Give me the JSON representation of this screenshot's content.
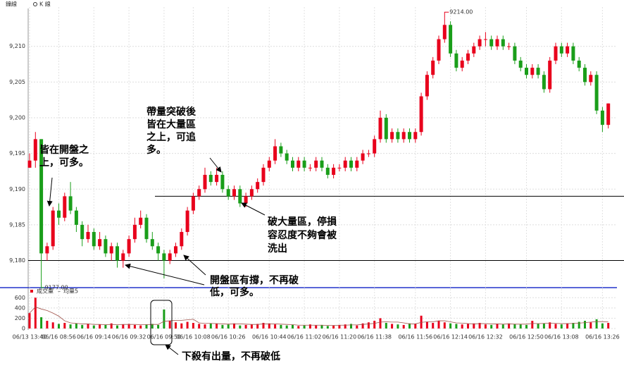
{
  "chart_data": {
    "type": "candlestick",
    "tabs": [
      "鐘線",
      "K 線"
    ],
    "ohlc": [
      [
        9193,
        9195,
        9193,
        9194
      ],
      [
        9194,
        9198,
        9193,
        9197
      ],
      [
        9197,
        9197,
        9177,
        9181
      ],
      [
        9181,
        9182.5,
        9180,
        9182
      ],
      [
        9182,
        9187.5,
        9181.5,
        9187
      ],
      [
        9187,
        9188,
        9185,
        9186
      ],
      [
        9186,
        9189.5,
        9185.5,
        9189
      ],
      [
        9189,
        9191,
        9186.5,
        9187
      ],
      [
        9187,
        9187.5,
        9184,
        9185
      ],
      [
        9185,
        9185.5,
        9182,
        9183
      ],
      [
        9183,
        9185,
        9182.5,
        9184
      ],
      [
        9184,
        9184.5,
        9181.5,
        9182
      ],
      [
        9182,
        9184,
        9181.5,
        9183
      ],
      [
        9183,
        9183.5,
        9180.5,
        9181
      ],
      [
        9181,
        9182.5,
        9180,
        9182
      ],
      [
        9182,
        9182.5,
        9179,
        9180
      ],
      [
        9180,
        9181.5,
        9179,
        9181
      ],
      [
        9181,
        9183.5,
        9180.5,
        9183
      ],
      [
        9183,
        9186,
        9182.5,
        9185
      ],
      [
        9185,
        9187,
        9184.5,
        9186
      ],
      [
        9186,
        9186.5,
        9182.5,
        9183
      ],
      [
        9183,
        9184,
        9181.5,
        9182
      ],
      [
        9182,
        9182.5,
        9180,
        9181
      ],
      [
        9181,
        9181.5,
        9177.5,
        9180
      ],
      [
        9180,
        9181.5,
        9179.5,
        9181
      ],
      [
        9181,
        9182.5,
        9180.5,
        9182
      ],
      [
        9182,
        9184.5,
        9181.5,
        9184
      ],
      [
        9184,
        9187.5,
        9183.5,
        9187
      ],
      [
        9187,
        9189.5,
        9186.5,
        9189
      ],
      [
        9189,
        9190.5,
        9188.5,
        9190
      ],
      [
        9190,
        9193,
        9189.5,
        9192
      ],
      [
        9192,
        9192.5,
        9190.5,
        9191
      ],
      [
        9191,
        9193,
        9190.5,
        9192
      ],
      [
        9192,
        9192.5,
        9189.5,
        9190
      ],
      [
        9190,
        9190.5,
        9188.5,
        9189
      ],
      [
        9189,
        9190.5,
        9188.5,
        9190
      ],
      [
        9190,
        9190.5,
        9187.5,
        9188
      ],
      [
        9188,
        9189.5,
        9187.5,
        9189
      ],
      [
        9189,
        9190.5,
        9188.5,
        9190
      ],
      [
        9190,
        9191.5,
        9189.5,
        9191
      ],
      [
        9191,
        9193.5,
        9190.5,
        9193
      ],
      [
        9193,
        9194.5,
        9192.5,
        9194
      ],
      [
        9194,
        9197,
        9193.5,
        9196
      ],
      [
        9196,
        9196.5,
        9194.5,
        9195
      ],
      [
        9195,
        9195.5,
        9193.5,
        9194
      ],
      [
        9194,
        9194.5,
        9192.5,
        9193
      ],
      [
        9193,
        9194.5,
        9192.5,
        9194
      ],
      [
        9194,
        9194.5,
        9192.5,
        9193
      ],
      [
        9193,
        9193.5,
        9192.5,
        9193
      ],
      [
        9193,
        9194.5,
        9192.5,
        9194
      ],
      [
        9194,
        9194.5,
        9192.5,
        9193
      ],
      [
        9193,
        9193.5,
        9191.5,
        9192
      ],
      [
        9192,
        9193.5,
        9191.5,
        9193
      ],
      [
        9193,
        9193.5,
        9192.5,
        9193
      ],
      [
        9193,
        9194.5,
        9192.5,
        9194
      ],
      [
        9194,
        9194.5,
        9192.5,
        9193
      ],
      [
        9193,
        9194.5,
        9192.5,
        9194
      ],
      [
        9194,
        9195.5,
        9193.5,
        9195
      ],
      [
        9195,
        9195.5,
        9194.5,
        9195
      ],
      [
        9195,
        9197.5,
        9194.5,
        9197
      ],
      [
        9197,
        9201,
        9196.5,
        9200
      ],
      [
        9200,
        9200.5,
        9196.5,
        9197
      ],
      [
        9197,
        9198.5,
        9196.5,
        9198
      ],
      [
        9198,
        9198.5,
        9196.5,
        9197
      ],
      [
        9197,
        9198.5,
        9196.5,
        9198
      ],
      [
        9198,
        9198.5,
        9196.5,
        9197
      ],
      [
        9197,
        9198.5,
        9196.5,
        9198
      ],
      [
        9198,
        9203.5,
        9197.5,
        9203
      ],
      [
        9203,
        9206.5,
        9202.5,
        9206
      ],
      [
        9206,
        9208.5,
        9205.5,
        9208
      ],
      [
        9208,
        9211.5,
        9207.5,
        9211
      ],
      [
        9211,
        9214,
        9210.5,
        9213
      ],
      [
        9213,
        9213.5,
        9208.5,
        9209
      ],
      [
        9209,
        9209.5,
        9206.5,
        9207
      ],
      [
        9207,
        9208.5,
        9206.5,
        9208
      ],
      [
        9208,
        9209.5,
        9207.5,
        9209
      ],
      [
        9209,
        9210.5,
        9208.5,
        9210
      ],
      [
        9210,
        9211.5,
        9209.5,
        9211
      ],
      [
        9211,
        9212,
        9210,
        9211
      ],
      [
        9211,
        9211.5,
        9209.5,
        9210
      ],
      [
        9210,
        9211.5,
        9209.5,
        9211
      ],
      [
        9211,
        9211.5,
        9209.5,
        9210
      ],
      [
        9210,
        9210.5,
        9209.5,
        9210
      ],
      [
        9210,
        9210.5,
        9207.5,
        9208
      ],
      [
        9208,
        9208.5,
        9206.5,
        9207
      ],
      [
        9207,
        9207.5,
        9205.5,
        9206
      ],
      [
        9206,
        9207.5,
        9205.5,
        9207
      ],
      [
        9207,
        9207.5,
        9205.5,
        9206
      ],
      [
        9206,
        9206.5,
        9203.5,
        9204
      ],
      [
        9204,
        9208.5,
        9203.5,
        9208
      ],
      [
        9208,
        9210.5,
        9207.5,
        9210
      ],
      [
        9210,
        9210.5,
        9208.5,
        9209
      ],
      [
        9209,
        9210.5,
        9208.5,
        9210
      ],
      [
        9210,
        9210.5,
        9207.5,
        9208
      ],
      [
        9208,
        9208.5,
        9206.5,
        9207
      ],
      [
        9207,
        9207.5,
        9204.5,
        9205
      ],
      [
        9205,
        9206.5,
        9204.5,
        9206
      ],
      [
        9206,
        9206.5,
        9200.5,
        9201
      ],
      [
        9201,
        9201.5,
        9198,
        9199
      ],
      [
        9199,
        9202,
        9198.5,
        9202
      ]
    ],
    "up_color": "#e8001c",
    "down_color": "#1a9e1a",
    "ylim": [
      9176.5,
      9215.5
    ],
    "yticks": [
      {
        "value": 9180,
        "label": "9,180"
      },
      {
        "value": 9185,
        "label": "9,185"
      },
      {
        "value": 9190,
        "label": "9,190"
      },
      {
        "value": 9195,
        "label": "9,195"
      },
      {
        "value": 9200,
        "label": "9,200"
      },
      {
        "value": 9205,
        "label": "9,205"
      },
      {
        "value": 9210,
        "label": "9,210"
      }
    ],
    "max_label": {
      "value": 9214,
      "label": "9214.00"
    },
    "min_label": {
      "value": 9177,
      "label": "9177.00"
    },
    "hlines": [
      9189,
      9180
    ],
    "xticks": [
      {
        "value": 0,
        "label": "06/13 13:40"
      },
      {
        "value": 5,
        "label": "06/16 08:56"
      },
      {
        "value": 11,
        "label": "06/16 09:14"
      },
      {
        "value": 17,
        "label": "06/16 09:32"
      },
      {
        "value": 23,
        "label": "06/16 09:50"
      },
      {
        "value": 28,
        "label": "06/16 10:08"
      },
      {
        "value": 34,
        "label": "06/16 10:26"
      },
      {
        "value": 41,
        "label": "06/16 10:44"
      },
      {
        "value": 47,
        "label": "06/16 11:02"
      },
      {
        "value": 53,
        "label": "06/16 11:20"
      },
      {
        "value": 59,
        "label": "06/16 11:38"
      },
      {
        "value": 66,
        "label": "06/16 11:56"
      },
      {
        "value": 72,
        "label": "06/16 12:14"
      },
      {
        "value": 78,
        "label": "06/16 12:32"
      },
      {
        "value": 85,
        "label": "06/16 12:50"
      },
      {
        "value": 91,
        "label": "06/16 13:08"
      },
      {
        "value": 98,
        "label": "06/16 13:26"
      }
    ],
    "volume": {
      "name": "成交量",
      "color": "#e8001c",
      "values": [
        300,
        600,
        220,
        150,
        120,
        90,
        110,
        80,
        100,
        70,
        90,
        60,
        80,
        70,
        100,
        60,
        80,
        90,
        70,
        60,
        80,
        90,
        70,
        370,
        150,
        120,
        100,
        130,
        110,
        90,
        80,
        100,
        90,
        70,
        80,
        100,
        60,
        70,
        80,
        90,
        110,
        100,
        80,
        70,
        60,
        70,
        50,
        60,
        80,
        60,
        70,
        50,
        60,
        70,
        80,
        90,
        60,
        100,
        120,
        150,
        200,
        110,
        90,
        80,
        70,
        100,
        90,
        250,
        130,
        110,
        150,
        120,
        100,
        90,
        80,
        90,
        100,
        110,
        80,
        70,
        90,
        80,
        100,
        90,
        80,
        70,
        150,
        90,
        100,
        120,
        90,
        80,
        100,
        110,
        130,
        150,
        120,
        180,
        100,
        110
      ],
      "ylim": [
        0,
        700
      ],
      "yticks": [
        0,
        200,
        400,
        600
      ]
    },
    "ma": {
      "name": "均量5",
      "color": "#a0524a",
      "values": [
        300,
        420,
        380,
        350,
        300,
        240,
        150,
        110,
        100,
        90,
        90,
        80,
        80,
        75,
        80,
        75,
        80,
        80,
        80,
        75,
        75,
        80,
        80,
        140,
        150,
        160,
        160,
        170,
        180,
        110,
        100,
        100,
        95,
        90,
        85,
        90,
        90,
        85,
        80,
        80,
        90,
        90,
        90,
        85,
        80,
        75,
        65,
        65,
        65,
        65,
        65,
        60,
        60,
        65,
        65,
        70,
        70,
        80,
        90,
        100,
        125,
        130,
        125,
        125,
        110,
        90,
        90,
        120,
        130,
        130,
        150,
        150,
        130,
        110,
        105,
        95,
        90,
        95,
        95,
        90,
        90,
        85,
        90,
        85,
        85,
        85,
        100,
        95,
        100,
        105,
        100,
        95,
        95,
        100,
        105,
        115,
        125,
        135,
        135,
        130
      ]
    },
    "annotations": [
      {
        "lines": [
          "皆在開盤之",
          "上，可多。"
        ]
      },
      {
        "lines": [
          "帶量突破後",
          "皆在大量區",
          "之上，可追",
          "多。"
        ]
      },
      {
        "lines": [
          "破大量區，停損",
          "容忍度不夠會被",
          "洗出"
        ]
      },
      {
        "lines": [
          "開盤區有撐，不再破",
          "低，可多。"
        ]
      },
      {
        "lines": [
          "下殺有出量，不再破低"
        ]
      }
    ]
  }
}
